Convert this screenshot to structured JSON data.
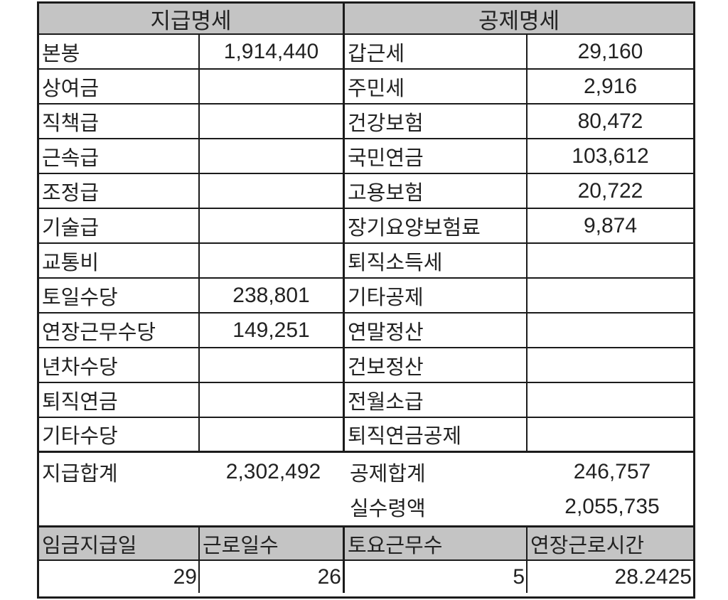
{
  "colors": {
    "border": "#1b1b1b",
    "header_bg": "#c4c4c4",
    "text": "#222222",
    "background": "#ffffff"
  },
  "section_headers": {
    "payment": "지급명세",
    "deduction": "공제명세"
  },
  "rows": [
    {
      "pay_label": "본봉",
      "pay_value": "1,914,440",
      "ded_label": "갑근세",
      "ded_value": "29,160"
    },
    {
      "pay_label": "상여금",
      "pay_value": "",
      "ded_label": "주민세",
      "ded_value": "2,916"
    },
    {
      "pay_label": "직책급",
      "pay_value": "",
      "ded_label": "건강보험",
      "ded_value": "80,472"
    },
    {
      "pay_label": "근속급",
      "pay_value": "",
      "ded_label": "국민연금",
      "ded_value": "103,612"
    },
    {
      "pay_label": "조정급",
      "pay_value": "",
      "ded_label": "고용보험",
      "ded_value": "20,722"
    },
    {
      "pay_label": "기술급",
      "pay_value": "",
      "ded_label": "장기요양보험료",
      "ded_value": "9,874"
    },
    {
      "pay_label": "교통비",
      "pay_value": "",
      "ded_label": "퇴직소득세",
      "ded_value": ""
    },
    {
      "pay_label": "토일수당",
      "pay_value": "238,801",
      "ded_label": "기타공제",
      "ded_value": ""
    },
    {
      "pay_label": "연장근무수당",
      "pay_value": "149,251",
      "ded_label": "연말정산",
      "ded_value": ""
    },
    {
      "pay_label": "년차수당",
      "pay_value": "",
      "ded_label": "건보정산",
      "ded_value": ""
    },
    {
      "pay_label": "퇴직연금",
      "pay_value": "",
      "ded_label": "전월소급",
      "ded_value": ""
    },
    {
      "pay_label": "기타수당",
      "pay_value": "",
      "ded_label": "퇴직연금공제",
      "ded_value": ""
    }
  ],
  "summary": {
    "pay_total_label": "지급합계",
    "pay_total_value": "2,302,492",
    "ded_total_label": "공제합계",
    "ded_total_value": "246,757",
    "net_label": "실수령액",
    "net_value": "2,055,735"
  },
  "footer": {
    "headers": [
      "임금지급일",
      "근로일수",
      "토요근무수",
      "연장근로시간"
    ],
    "values": [
      "29",
      "26",
      "5",
      "28.2425"
    ]
  }
}
